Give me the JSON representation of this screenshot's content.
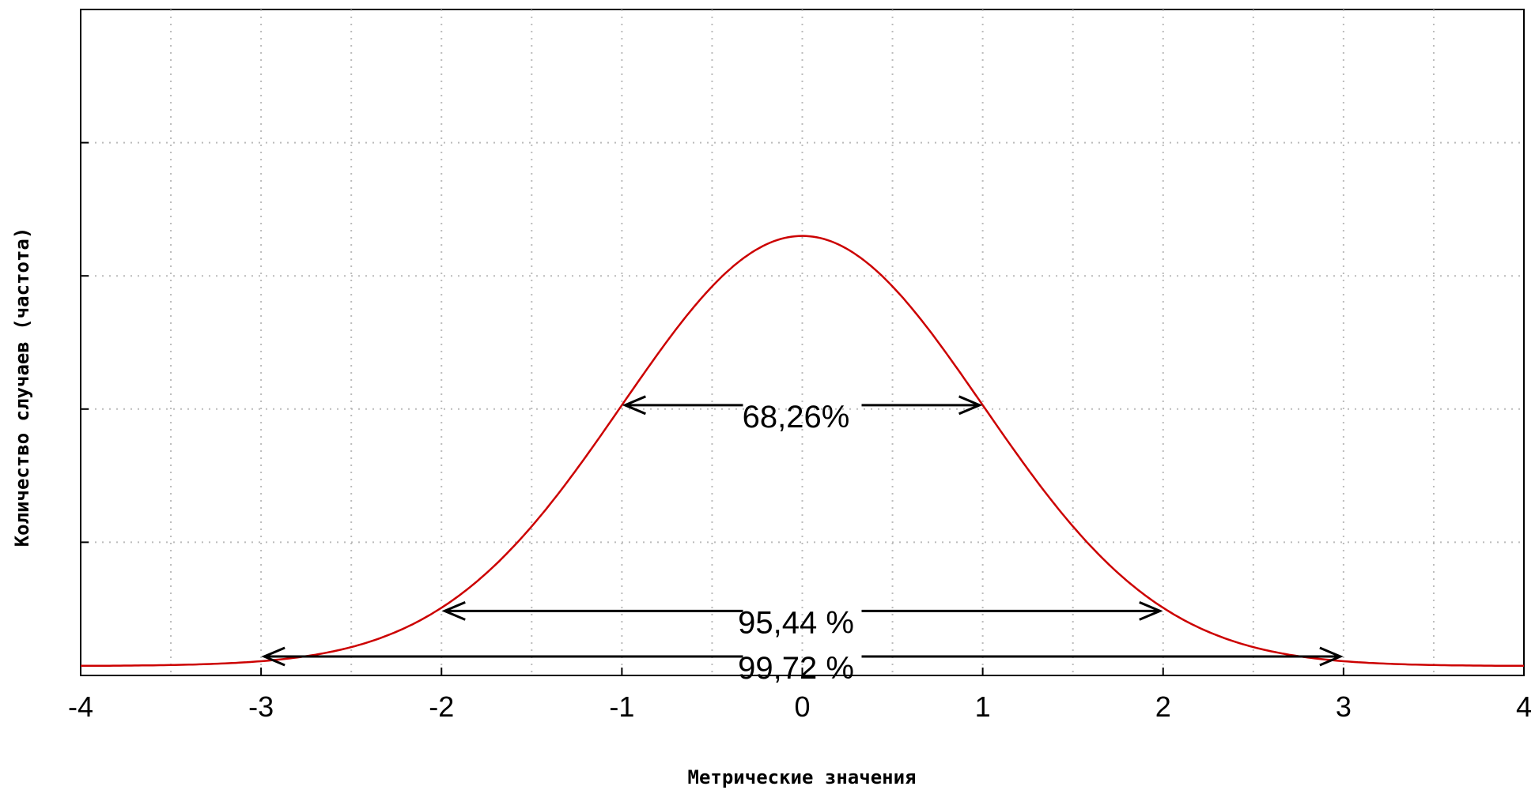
{
  "chart_data": {
    "type": "line",
    "title": "",
    "xlabel": "Метрические значения",
    "ylabel": "Количество случаев (частота)",
    "xlim": [
      -4,
      4
    ],
    "ylim": [
      0,
      1
    ],
    "x_ticks": [
      -4,
      -3,
      -2,
      -1,
      0,
      1,
      2,
      3,
      4
    ],
    "x_tick_labels": [
      "-4",
      "-3",
      "-2",
      "-1",
      "0",
      "1",
      "2",
      "3",
      "4"
    ],
    "y_tick_labels": [],
    "grid": true,
    "series": [
      {
        "color": "#cc0000",
        "x": [
          -4,
          -3.5,
          -3,
          -2.5,
          -2,
          -1.5,
          -1,
          -0.5,
          0,
          0.5,
          1,
          1.5,
          2,
          2.5,
          3,
          3.5,
          4
        ],
        "y": [
          0.0003,
          0.0022,
          0.011,
          0.044,
          0.135,
          0.325,
          0.607,
          0.882,
          1.0,
          0.882,
          0.607,
          0.325,
          0.135,
          0.044,
          0.011,
          0.0022,
          0.0003
        ]
      }
    ],
    "y_peak_fraction": 0.66,
    "annotations": [
      {
        "label": "68,26%",
        "from": -1,
        "to": 1
      },
      {
        "label": "95,44 %",
        "from": -2,
        "to": 2
      },
      {
        "label": "99,72 %",
        "from": -3,
        "to": 3
      }
    ]
  },
  "colors": {
    "curve": "#cc0000",
    "grid": "#bbbbbb",
    "axis": "#000000",
    "arrows": "#000000"
  }
}
